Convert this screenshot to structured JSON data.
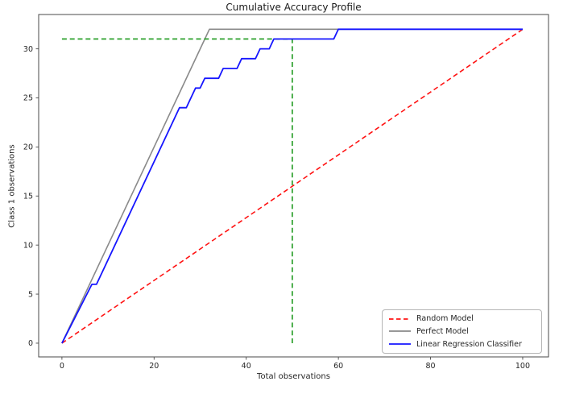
{
  "figure": {
    "title": "Cumulative Accuracy Profile",
    "xlabel": "Total observations",
    "ylabel": "Class 1 observations"
  },
  "chart_data": {
    "type": "line",
    "title": "Cumulative Accuracy Profile",
    "xlabel": "Total observations",
    "ylabel": "Class 1 observations",
    "xlim": [
      -5.05,
      105.6
    ],
    "ylim": [
      -1.4,
      33.5
    ],
    "x_ticks": [
      0,
      20,
      40,
      60,
      80,
      100
    ],
    "y_ticks": [
      0,
      5,
      10,
      15,
      20,
      25,
      30
    ],
    "grid": false,
    "legend": {
      "position": "lower right",
      "entries": [
        "Random Model",
        "Perfect Model",
        "Linear Regression Classifier"
      ]
    },
    "series": [
      {
        "name": "Perfect Model",
        "color": "#8a8a8a",
        "style": "solid",
        "width": 1.6,
        "points": [
          [
            0,
            0
          ],
          [
            32,
            32
          ],
          [
            100,
            32
          ]
        ]
      },
      {
        "name": "Random Model",
        "color": "#ff1414",
        "style": "dashed",
        "width": 1.6,
        "points": [
          [
            0,
            0
          ],
          [
            100,
            32
          ]
        ]
      },
      {
        "name": "Linear Regression Classifier",
        "color": "#1616ff",
        "style": "solid",
        "width": 1.8,
        "points": [
          [
            0,
            0
          ],
          [
            6.5,
            6
          ],
          [
            7.5,
            6
          ],
          [
            25.5,
            24
          ],
          [
            27,
            24
          ],
          [
            29,
            26
          ],
          [
            30,
            26
          ],
          [
            31,
            27
          ],
          [
            34,
            27
          ],
          [
            35,
            28
          ],
          [
            38,
            28
          ],
          [
            39,
            29
          ],
          [
            42,
            29
          ],
          [
            43,
            30
          ],
          [
            45,
            30
          ],
          [
            46,
            31
          ],
          [
            59,
            31
          ],
          [
            60,
            32
          ],
          [
            100,
            32
          ]
        ]
      }
    ],
    "legend_order": [
      1,
      0,
      2
    ],
    "reference_lines": [
      {
        "name": "threshold-horizontal",
        "color": "#2ca02c",
        "style": "dashed",
        "width": 1.7,
        "points": [
          [
            0,
            31
          ],
          [
            50,
            31
          ]
        ]
      },
      {
        "name": "threshold-vertical",
        "color": "#2ca02c",
        "style": "dashed",
        "width": 1.7,
        "points": [
          [
            50,
            0
          ],
          [
            50,
            31
          ]
        ]
      }
    ],
    "colors": {
      "spine": "#4a4a4a",
      "tick_text": "#262626"
    }
  }
}
